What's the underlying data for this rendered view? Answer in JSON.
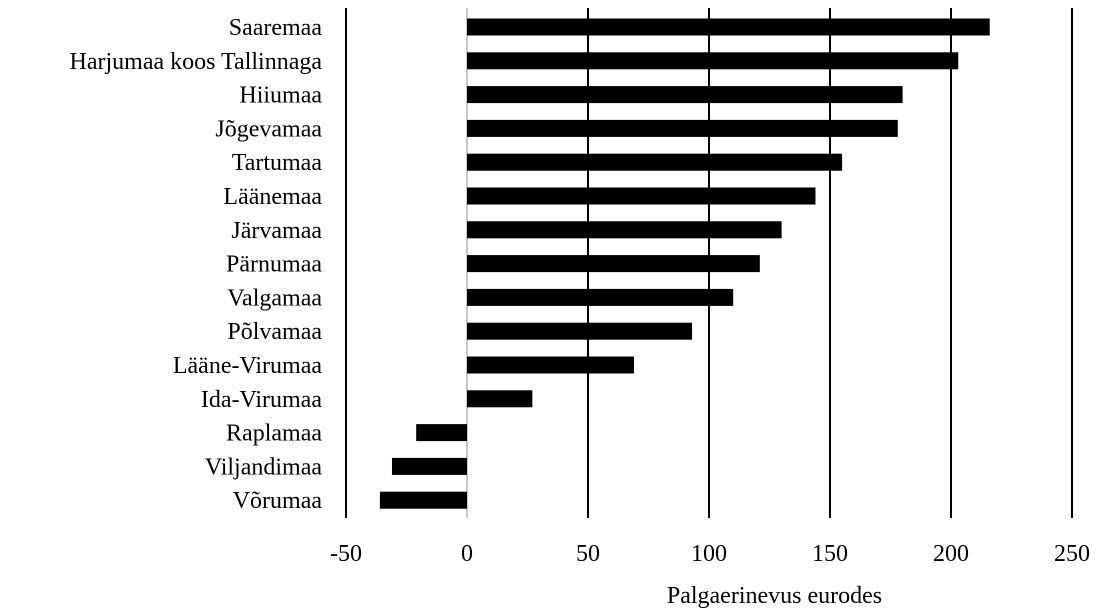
{
  "chart_data": {
    "type": "bar",
    "orientation": "horizontal",
    "categories": [
      "Saaremaa",
      "Harjumaa koos Tallinnaga",
      "Hiiumaa",
      "Jõgevamaa",
      "Tartumaa",
      "Läänemaa",
      "Järvamaa",
      "Pärnumaa",
      "Valgamaa",
      "Põlvamaa",
      "Lääne-Virumaa",
      "Ida-Virumaa",
      "Raplamaa",
      "Viljandimaa",
      "Võrumaa"
    ],
    "values": [
      216,
      203,
      180,
      178,
      155,
      144,
      130,
      121,
      110,
      93,
      69,
      27,
      -21,
      -31,
      -36
    ],
    "xlabel": "Palgaerinevus eurodes",
    "ylabel": "",
    "xlim": [
      -50,
      250
    ],
    "xticks": [
      -50,
      0,
      50,
      100,
      150,
      200,
      250
    ],
    "xtick_labels": [
      "-50",
      "0",
      "50",
      "100",
      "150",
      "200",
      "250"
    ],
    "grid": "vertical",
    "bar_color": "#000000",
    "legend": "none"
  }
}
